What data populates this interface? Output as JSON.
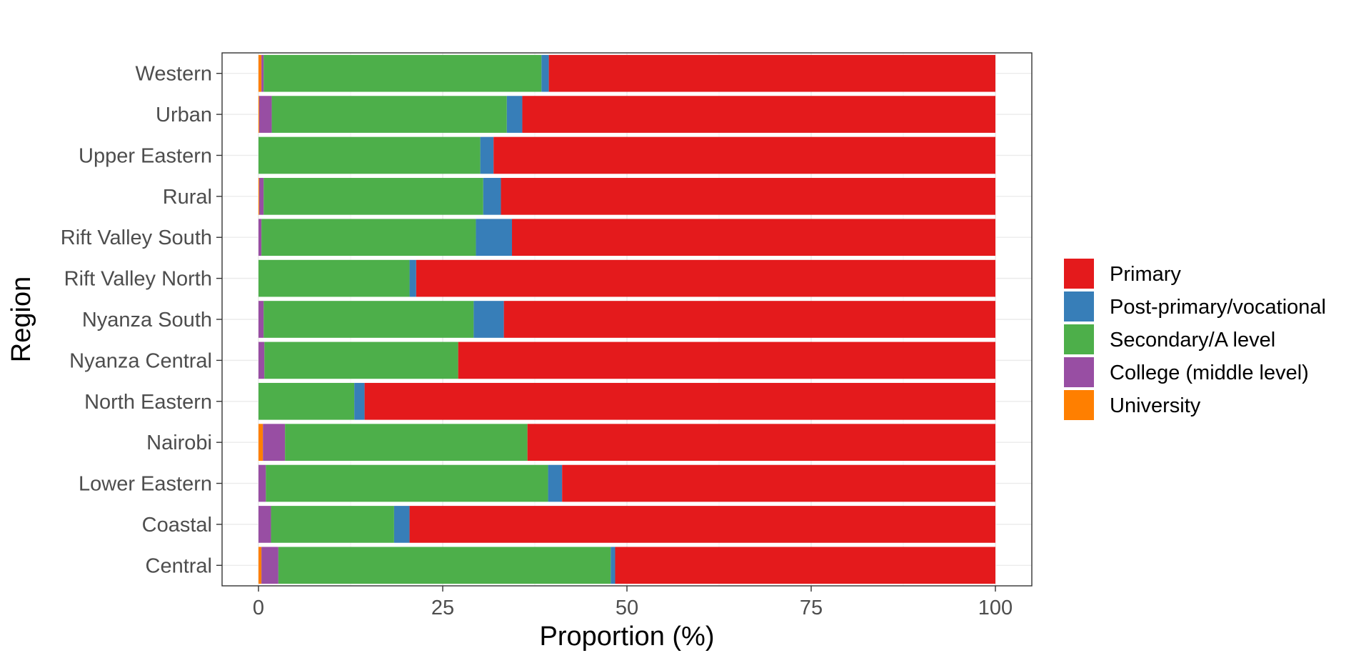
{
  "chart_data": {
    "type": "bar",
    "orientation": "horizontal",
    "stacked": true,
    "title": "",
    "xlabel": "Proportion (%)",
    "ylabel": "Region",
    "xlim": [
      0,
      100
    ],
    "xticks": [
      0,
      25,
      50,
      75,
      100
    ],
    "grid": true,
    "legend_position": "right",
    "categories": [
      "Western",
      "Urban",
      "Upper Eastern",
      "Rural",
      "Rift Valley South",
      "Rift Valley North",
      "Nyanza South",
      "Nyanza Central",
      "North Eastern",
      "Nairobi",
      "Lower Eastern",
      "Coastal",
      "Central"
    ],
    "series": [
      {
        "name": "University",
        "color": "#ff7f00",
        "values": [
          0.4,
          0.1,
          0,
          0.1,
          0,
          0,
          0,
          0,
          0,
          0.6,
          0,
          0,
          0.4
        ]
      },
      {
        "name": "College (middle level)",
        "color": "#984ea3",
        "values": [
          0.3,
          1.7,
          0,
          0.6,
          0.4,
          0,
          0.7,
          0.8,
          0,
          3.0,
          1.0,
          1.7,
          2.3
        ]
      },
      {
        "name": "Secondary/A level",
        "color": "#4daf4a",
        "values": [
          37.7,
          31.9,
          30.1,
          29.8,
          29.1,
          20.5,
          28.5,
          26.3,
          13.0,
          32.9,
          38.3,
          16.7,
          45.1
        ]
      },
      {
        "name": "Post-primary/vocational",
        "color": "#377eb8",
        "values": [
          1.0,
          2.1,
          1.8,
          2.4,
          4.9,
          0.9,
          4.1,
          0,
          1.4,
          0,
          1.9,
          2.1,
          0.6
        ]
      },
      {
        "name": "Primary",
        "color": "#e41a1c",
        "values": [
          60.6,
          64.2,
          68.1,
          67.1,
          65.6,
          78.6,
          66.7,
          72.9,
          85.6,
          63.5,
          58.8,
          79.5,
          51.6
        ]
      }
    ],
    "legend": [
      {
        "label": "Primary",
        "color": "#e41a1c"
      },
      {
        "label": "Post-primary/vocational",
        "color": "#377eb8"
      },
      {
        "label": "Secondary/A level",
        "color": "#4daf4a"
      },
      {
        "label": "College (middle level)",
        "color": "#984ea3"
      },
      {
        "label": "University",
        "color": "#ff7f00"
      }
    ]
  }
}
